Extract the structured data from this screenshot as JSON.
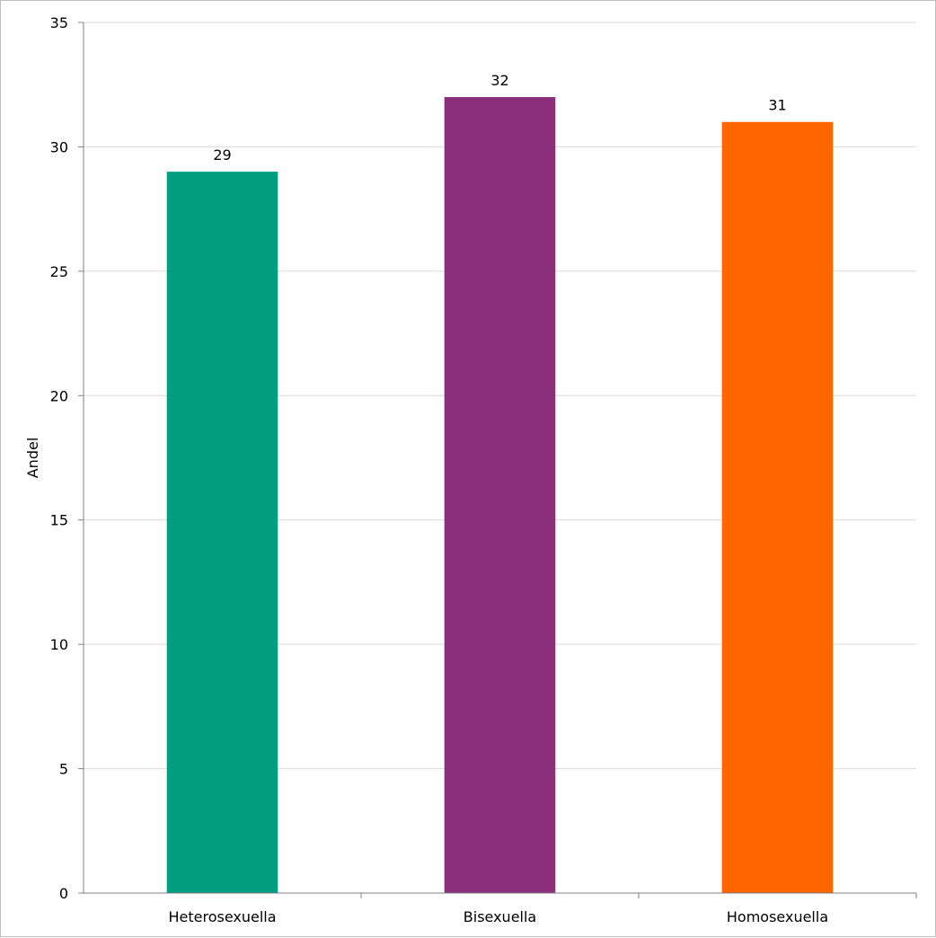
{
  "chart_data": {
    "type": "bar",
    "categories": [
      "Heterosexuella",
      "Bisexuella",
      "Homosexuella"
    ],
    "values": [
      29,
      32,
      31
    ],
    "data_labels": [
      "29",
      "32",
      "31"
    ],
    "colors": [
      "#009e7e",
      "#8b2e7c",
      "#ff6600"
    ],
    "title": "",
    "xlabel": "",
    "ylabel": "Andel",
    "ylim": [
      0,
      35
    ],
    "yticks": [
      0,
      5,
      10,
      15,
      20,
      25,
      30,
      35
    ],
    "grid": true,
    "legend": "none"
  }
}
